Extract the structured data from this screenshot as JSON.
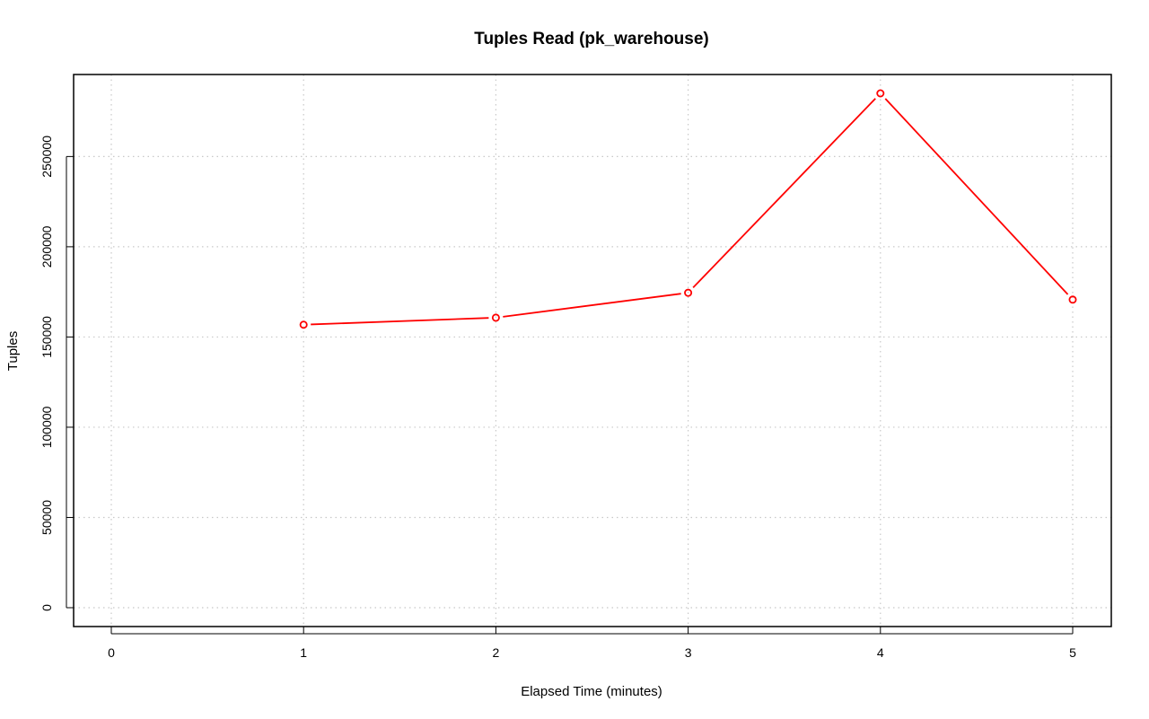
{
  "chart_data": {
    "type": "line",
    "title": "Tuples Read (pk_warehouse)",
    "xlabel": "Elapsed Time (minutes)",
    "ylabel": "Tuples",
    "xlim": [
      0,
      5
    ],
    "ylim": [
      0,
      285000
    ],
    "x_ticks": [
      "0",
      "1",
      "2",
      "3",
      "4",
      "5"
    ],
    "y_ticks": [
      "0",
      "50000",
      "100000",
      "150000",
      "200000",
      "250000"
    ],
    "grid": true,
    "series": [
      {
        "color": "#ff0000",
        "marker": "open-circle",
        "points": [
          {
            "x": 1,
            "y": 156800
          },
          {
            "x": 2,
            "y": 160700
          },
          {
            "x": 3,
            "y": 174500
          },
          {
            "x": 4,
            "y": 285000
          },
          {
            "x": 5,
            "y": 170700
          }
        ]
      }
    ]
  }
}
